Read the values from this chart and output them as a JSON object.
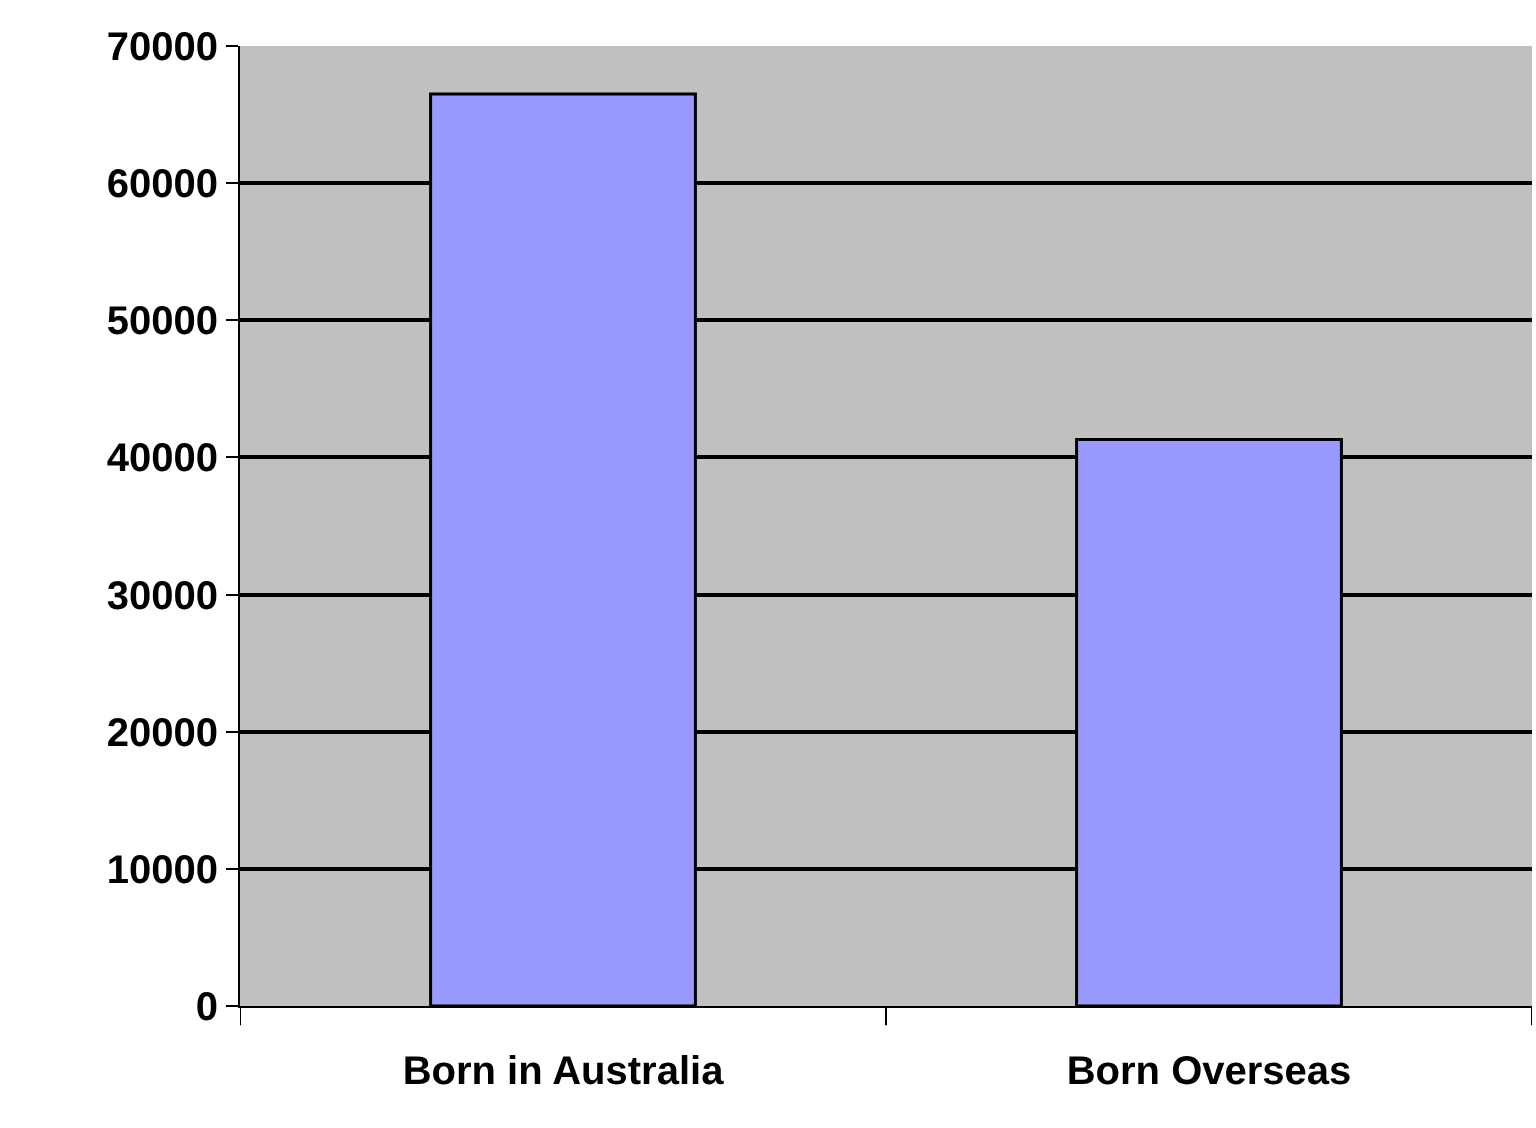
{
  "chart_data": {
    "type": "bar",
    "categories": [
      "Born in Australia",
      "Born Overseas"
    ],
    "values": [
      66500,
      41300
    ],
    "color": "#9999ff",
    "ylim": [
      0,
      70000
    ],
    "yticks": [
      0,
      10000,
      20000,
      30000,
      40000,
      50000,
      60000,
      70000
    ],
    "grid": "y"
  }
}
